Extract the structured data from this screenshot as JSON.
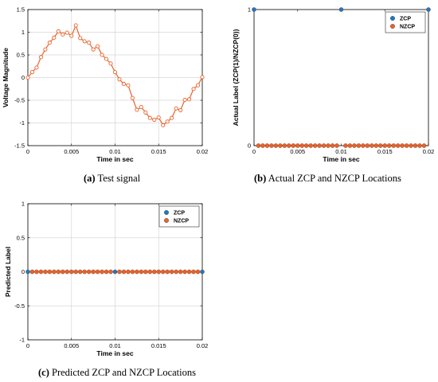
{
  "colors": {
    "signal": "#e8622c",
    "zcp": "#1f77c4",
    "nzcp": "#e8622c",
    "grid": "#d6d6d6"
  },
  "captions": [
    {
      "letter": "(a)",
      "text": " Test signal"
    },
    {
      "letter": "(b)",
      "text": " Actual ZCP and NZCP Locations"
    },
    {
      "letter": "(c)",
      "text": " Predicted ZCP and NZCP Locations"
    }
  ],
  "chart_data": [
    {
      "type": "line",
      "xlabel": "Time in sec",
      "ylabel": "Voltage Magnitude",
      "xlim": [
        0,
        0.02
      ],
      "ylim": [
        -1.5,
        1.5
      ],
      "xticks": [
        "0",
        "0.005",
        "0.01",
        "0.015",
        "0.02"
      ],
      "yticks": [
        "-1.5",
        "-1",
        "-0.5",
        "0",
        "0.5",
        "1",
        "1.5"
      ],
      "grid": true,
      "series": [
        {
          "x": [
            0,
            0.0005,
            0.001,
            0.0015,
            0.002,
            0.0025,
            0.003,
            0.0035,
            0.004,
            0.0045,
            0.005,
            0.0055,
            0.006,
            0.0065,
            0.007,
            0.0075,
            0.008,
            0.0085,
            0.009,
            0.0095,
            0.01,
            0.0105,
            0.011,
            0.0115,
            0.012,
            0.0125,
            0.013,
            0.0135,
            0.014,
            0.0145,
            0.015,
            0.0155,
            0.016,
            0.0165,
            0.017,
            0.0175,
            0.018,
            0.0185,
            0.019,
            0.0195,
            0.02
          ],
          "values": [
            0,
            0.12,
            0.22,
            0.45,
            0.62,
            0.77,
            0.88,
            1.02,
            0.95,
            0.99,
            0.92,
            1.15,
            0.87,
            0.8,
            0.77,
            0.62,
            0.69,
            0.5,
            0.41,
            0.31,
            0.12,
            -0.04,
            -0.14,
            -0.17,
            -0.45,
            -0.71,
            -0.65,
            -0.77,
            -0.89,
            -0.93,
            -0.88,
            -1.05,
            -0.97,
            -0.89,
            -0.68,
            -0.72,
            -0.49,
            -0.48,
            -0.25,
            -0.17,
            0.01
          ]
        }
      ]
    },
    {
      "type": "scatter",
      "xlabel": "Time in sec",
      "ylabel": "Actual  Label (ZCP(1)/NZCP(0))",
      "xlim": [
        0,
        0.02
      ],
      "ylim": [
        0,
        1
      ],
      "xticks": [
        "0",
        "0.005",
        "0.01",
        "0.015",
        "0.02"
      ],
      "yticks": [
        "0",
        "1"
      ],
      "grid": false,
      "legend": {
        "position": "top-right",
        "entries": [
          "ZCP",
          "NZCP"
        ]
      },
      "series": [
        {
          "name": "ZCP",
          "x": [
            0,
            0.01,
            0.02
          ],
          "values": [
            1,
            1,
            1
          ]
        },
        {
          "name": "NZCP",
          "x_range": [
            0.0005,
            0.0195
          ],
          "x_step": 0.0005,
          "x_exclude": [
            0.01
          ],
          "value": 0
        }
      ]
    },
    {
      "type": "scatter",
      "xlabel": "Time in sec",
      "ylabel": "Predicted Label",
      "xlim": [
        0,
        0.02
      ],
      "ylim": [
        -1,
        1
      ],
      "xticks": [
        "0",
        "0.005",
        "0.01",
        "0.015",
        "0.02"
      ],
      "yticks": [
        "-1",
        "-0.5",
        "0",
        "0.5",
        "1"
      ],
      "grid": true,
      "legend": {
        "position": "top-right",
        "entries": [
          "ZCP",
          "NZCP"
        ]
      },
      "series": [
        {
          "name": "ZCP",
          "x": [
            0,
            0.01,
            0.02
          ],
          "values": [
            0,
            0,
            0
          ]
        },
        {
          "name": "NZCP",
          "x_range": [
            0.0005,
            0.0195
          ],
          "x_step": 0.0005,
          "x_exclude": [
            0.01
          ],
          "value": 0
        }
      ]
    }
  ]
}
